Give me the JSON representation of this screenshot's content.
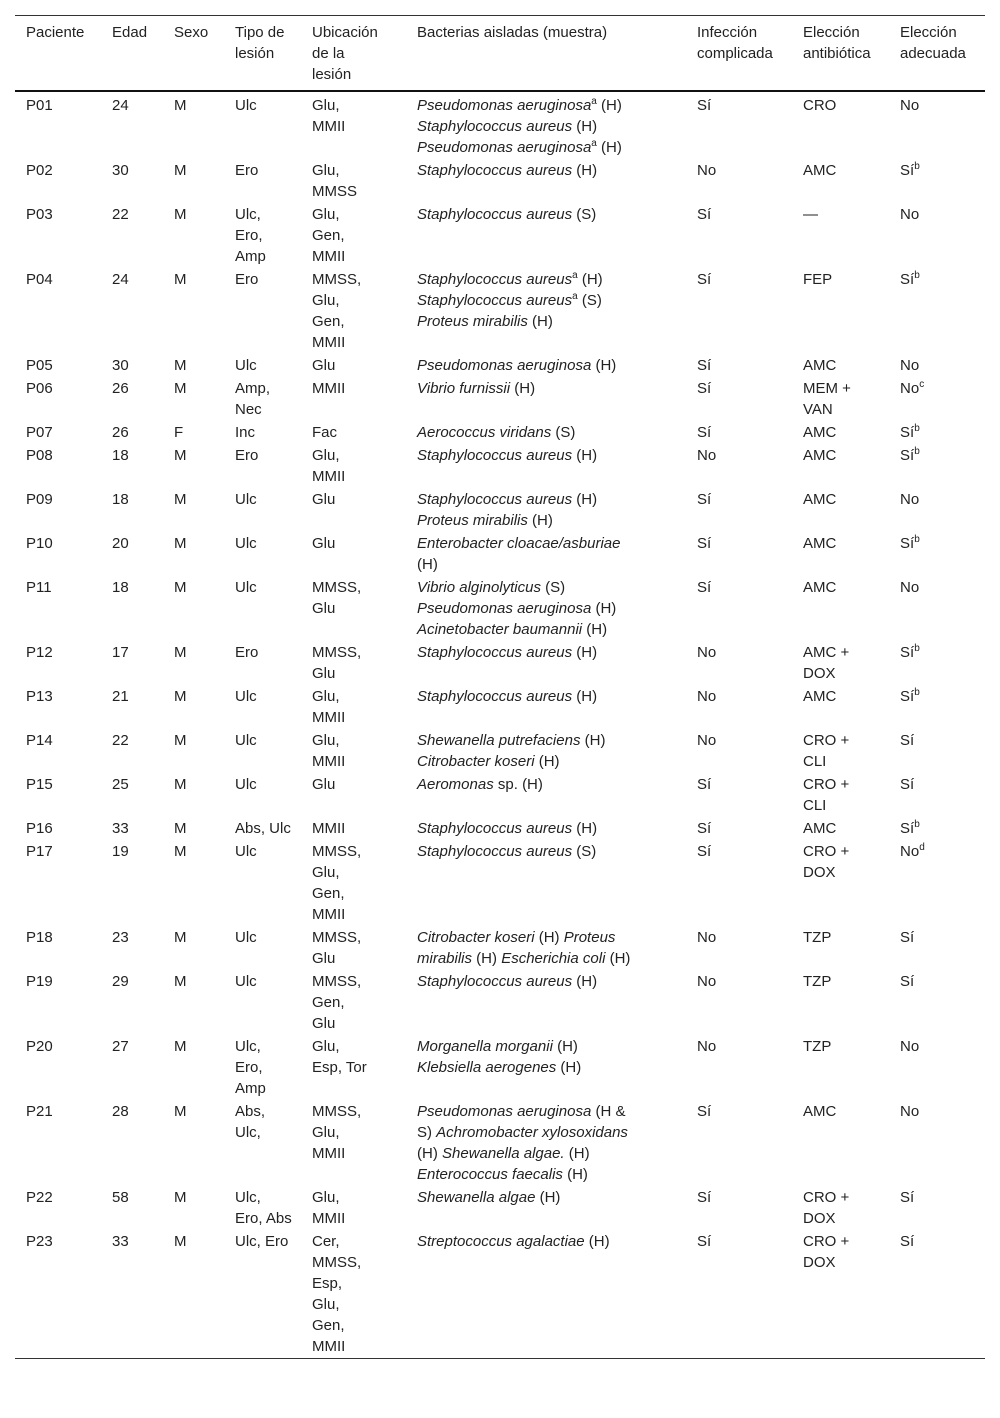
{
  "headers": [
    "Paciente",
    "Edad",
    "Sexo",
    "Tipo de lesión",
    "Ubicación de la lesión",
    "Bacterias aisladas (muestra)",
    "Infección complicada",
    "Elección antibiótica",
    "Elección adecuada"
  ],
  "rows": [
    {
      "id": "P01",
      "age": "24",
      "sex": "M",
      "type": "Ulc",
      "loc": "Glu, MMII",
      "bact": [
        [
          {
            "t": "Pseudomonas aeruginosa",
            "i": true
          },
          {
            "t": "a",
            "sup": true
          },
          {
            "t": " (H)"
          }
        ],
        [
          {
            "t": "Staphylococcus aureus",
            "i": true
          },
          {
            "t": " (H)"
          }
        ],
        [
          {
            "t": "Pseudomonas aeruginosa",
            "i": true
          },
          {
            "t": "a",
            "sup": true
          },
          {
            "t": " (H)"
          }
        ]
      ],
      "comp": "Sí",
      "abx": "CRO",
      "ok": "No",
      "ok_sup": ""
    },
    {
      "id": "P02",
      "age": "30",
      "sex": "M",
      "type": "Ero",
      "loc": "Glu, MMSS",
      "bact": [
        [
          {
            "t": "Staphylococcus aureus",
            "i": true
          },
          {
            "t": " (H)"
          }
        ]
      ],
      "comp": "No",
      "abx": "AMC",
      "ok": "Sí",
      "ok_sup": "b"
    },
    {
      "id": "P03",
      "age": "22",
      "sex": "M",
      "type": "Ulc, Ero, Amp",
      "loc": "Glu, Gen, MMII",
      "bact": [
        [
          {
            "t": "Staphylococcus aureus",
            "i": true
          },
          {
            "t": " (S)"
          }
        ]
      ],
      "comp": "Sí",
      "abx": "—",
      "ok": "No",
      "ok_sup": ""
    },
    {
      "id": "P04",
      "age": "24",
      "sex": "M",
      "type": "Ero",
      "loc": "MMSS, Glu, Gen, MMII",
      "bact": [
        [
          {
            "t": "Staphylococcus aureus",
            "i": true
          },
          {
            "t": "a",
            "sup": true
          },
          {
            "t": " (H)"
          }
        ],
        [
          {
            "t": "Staphylococcus aureus",
            "i": true
          },
          {
            "t": "a",
            "sup": true
          },
          {
            "t": " (S)"
          }
        ],
        [
          {
            "t": "Proteus mirabilis",
            "i": true
          },
          {
            "t": " (H)"
          }
        ]
      ],
      "comp": "Sí",
      "abx": "FEP",
      "ok": "Sí",
      "ok_sup": "b"
    },
    {
      "id": "P05",
      "age": "30",
      "sex": "M",
      "type": "Ulc",
      "loc": "Glu",
      "bact": [
        [
          {
            "t": "Pseudomonas aeruginosa",
            "i": true
          },
          {
            "t": " (H)"
          }
        ]
      ],
      "comp": "Sí",
      "abx": "AMC",
      "ok": "No",
      "ok_sup": ""
    },
    {
      "id": "P06",
      "age": "26",
      "sex": "M",
      "type": "Amp, Nec",
      "loc": "MMII",
      "bact": [
        [
          {
            "t": "Vibrio furnissii",
            "i": true
          },
          {
            "t": " (H)"
          }
        ]
      ],
      "comp": "Sí",
      "abx": "MEM + VAN",
      "ok": "No",
      "ok_sup": "c"
    },
    {
      "id": "P07",
      "age": "26",
      "sex": "F",
      "type": "Inc",
      "loc": "Fac",
      "bact": [
        [
          {
            "t": "Aerococcus viridans",
            "i": true
          },
          {
            "t": " (S)"
          }
        ]
      ],
      "comp": "Sí",
      "abx": "AMC",
      "ok": "Sí",
      "ok_sup": "b"
    },
    {
      "id": "P08",
      "age": "18",
      "sex": "M",
      "type": "Ero",
      "loc": "Glu, MMII",
      "bact": [
        [
          {
            "t": "Staphylococcus aureus",
            "i": true
          },
          {
            "t": " (H)"
          }
        ]
      ],
      "comp": "No",
      "abx": "AMC",
      "ok": "Sí",
      "ok_sup": "b"
    },
    {
      "id": "P09",
      "age": "18",
      "sex": "M",
      "type": "Ulc",
      "loc": "Glu",
      "bact": [
        [
          {
            "t": "Staphylococcus aureus",
            "i": true
          },
          {
            "t": " (H)"
          }
        ],
        [
          {
            "t": "Proteus mirabilis",
            "i": true
          },
          {
            "t": " (H)"
          }
        ]
      ],
      "comp": "Sí",
      "abx": "AMC",
      "ok": "No",
      "ok_sup": ""
    },
    {
      "id": "P10",
      "age": "20",
      "sex": "M",
      "type": "Ulc",
      "loc": "Glu",
      "bact": [
        [
          {
            "t": "Enterobacter cloacae/asburiae",
            "i": true
          },
          {
            "t": " (H)"
          }
        ]
      ],
      "comp": "Sí",
      "abx": "AMC",
      "ok": "Sí",
      "ok_sup": "b"
    },
    {
      "id": "P11",
      "age": "18",
      "sex": "M",
      "type": "Ulc",
      "loc": "MMSS, Glu",
      "bact": [
        [
          {
            "t": "Vibrio alginolyticus",
            "i": true
          },
          {
            "t": " (S)"
          }
        ],
        [
          {
            "t": "Pseudomonas aeruginosa",
            "i": true
          },
          {
            "t": " (H)"
          }
        ],
        [
          {
            "t": "Acinetobacter baumannii",
            "i": true
          },
          {
            "t": " (H)"
          }
        ]
      ],
      "comp": "Sí",
      "abx": "AMC",
      "ok": "No",
      "ok_sup": ""
    },
    {
      "id": "P12",
      "age": "17",
      "sex": "M",
      "type": "Ero",
      "loc": "MMSS, Glu",
      "bact": [
        [
          {
            "t": "Staphylococcus aureus",
            "i": true
          },
          {
            "t": " (H)"
          }
        ]
      ],
      "comp": "No",
      "abx": "AMC + DOX",
      "ok": "Sí",
      "ok_sup": "b"
    },
    {
      "id": "P13",
      "age": "21",
      "sex": "M",
      "type": "Ulc",
      "loc": "Glu, MMII",
      "bact": [
        [
          {
            "t": "Staphylococcus aureus",
            "i": true
          },
          {
            "t": " (H)"
          }
        ]
      ],
      "comp": "No",
      "abx": "AMC",
      "ok": "Sí",
      "ok_sup": "b"
    },
    {
      "id": "P14",
      "age": "22",
      "sex": "M",
      "type": "Ulc",
      "loc": "Glu, MMII",
      "bact": [
        [
          {
            "t": "Shewanella putrefaciens",
            "i": true
          },
          {
            "t": " (H)"
          }
        ],
        [
          {
            "t": "Citrobacter koseri",
            "i": true
          },
          {
            "t": " (H)"
          }
        ]
      ],
      "comp": "No",
      "abx": "CRO + CLI",
      "ok": "Sí",
      "ok_sup": ""
    },
    {
      "id": "P15",
      "age": "25",
      "sex": "M",
      "type": "Ulc",
      "loc": "Glu",
      "bact": [
        [
          {
            "t": "Aeromonas",
            "i": true
          },
          {
            "t": " sp. (H)"
          }
        ]
      ],
      "comp": "Sí",
      "abx": "CRO + CLI",
      "ok": "Sí",
      "ok_sup": ""
    },
    {
      "id": "P16",
      "age": "33",
      "sex": "M",
      "type": "Abs, Ulc",
      "loc": "MMII",
      "bact": [
        [
          {
            "t": "Staphylococcus aureus",
            "i": true
          },
          {
            "t": " (H)"
          }
        ]
      ],
      "comp": "Sí",
      "abx": "AMC",
      "ok": "Sí",
      "ok_sup": "b"
    },
    {
      "id": "P17",
      "age": "19",
      "sex": "M",
      "type": "Ulc",
      "loc": "MMSS, Glu, Gen, MMII",
      "bact": [
        [
          {
            "t": "Staphylococcus aureus",
            "i": true
          },
          {
            "t": " (S)"
          }
        ]
      ],
      "comp": "Sí",
      "abx": "CRO + DOX",
      "ok": "No",
      "ok_sup": "d"
    },
    {
      "id": "P18",
      "age": "23",
      "sex": "M",
      "type": "Ulc",
      "loc": "MMSS, Glu",
      "bact": [
        [
          {
            "t": "Citrobacter koseri",
            "i": true
          },
          {
            "t": " (H) "
          },
          {
            "t": "Proteus mirabilis",
            "i": true
          },
          {
            "t": " (H) "
          },
          {
            "t": "Escherichia coli",
            "i": true
          },
          {
            "t": " (H)"
          }
        ]
      ],
      "comp": "No",
      "abx": "TZP",
      "ok": "Sí",
      "ok_sup": ""
    },
    {
      "id": "P19",
      "age": "29",
      "sex": "M",
      "type": "Ulc",
      "loc": "MMSS, Gen, Glu",
      "bact": [
        [
          {
            "t": "Staphylococcus aureus",
            "i": true
          },
          {
            "t": " (H)"
          }
        ]
      ],
      "comp": "No",
      "abx": "TZP",
      "ok": "Sí",
      "ok_sup": ""
    },
    {
      "id": "P20",
      "age": "27",
      "sex": "M",
      "type": "Ulc, Ero, Amp",
      "loc": "Glu, Esp, Tor",
      "bact": [
        [
          {
            "t": "Morganella morganii",
            "i": true
          },
          {
            "t": " (H)"
          }
        ],
        [
          {
            "t": "Klebsiella aerogenes",
            "i": true
          },
          {
            "t": " (H)"
          }
        ]
      ],
      "comp": "No",
      "abx": "TZP",
      "ok": "No",
      "ok_sup": ""
    },
    {
      "id": "P21",
      "age": "28",
      "sex": "M",
      "type": "Abs, Ulc,",
      "loc": "MMSS, Glu, MMII",
      "bact": [
        [
          {
            "t": "Pseudomonas aeruginosa",
            "i": true
          },
          {
            "t": " (H & S) "
          },
          {
            "t": "Achromobacter xylosoxidans",
            "i": true
          },
          {
            "t": " (H) "
          },
          {
            "t": "Shewanella algae.",
            "i": true
          },
          {
            "t": " (H) "
          },
          {
            "t": "Enterococcus faecalis",
            "i": true
          },
          {
            "t": " (H)"
          }
        ]
      ],
      "comp": "Sí",
      "abx": "AMC",
      "ok": "No",
      "ok_sup": ""
    },
    {
      "id": "P22",
      "age": "58",
      "sex": "M",
      "type": "Ulc, Ero, Abs",
      "loc": "Glu, MMII",
      "bact": [
        [
          {
            "t": "Shewanella algae",
            "i": true
          },
          {
            "t": " (H)"
          }
        ]
      ],
      "comp": "Sí",
      "abx": "CRO + DOX",
      "ok": "Sí",
      "ok_sup": ""
    },
    {
      "id": "P23",
      "age": "33",
      "sex": "M",
      "type": "Ulc, Ero",
      "loc": "Cer, MMSS, Esp, Glu, Gen, MMII",
      "bact": [
        [
          {
            "t": "Streptococcus agalactiae",
            "i": true
          },
          {
            "t": " (H)"
          }
        ]
      ],
      "comp": "Sí",
      "abx": "CRO + DOX",
      "ok": "Sí",
      "ok_sup": ""
    }
  ]
}
